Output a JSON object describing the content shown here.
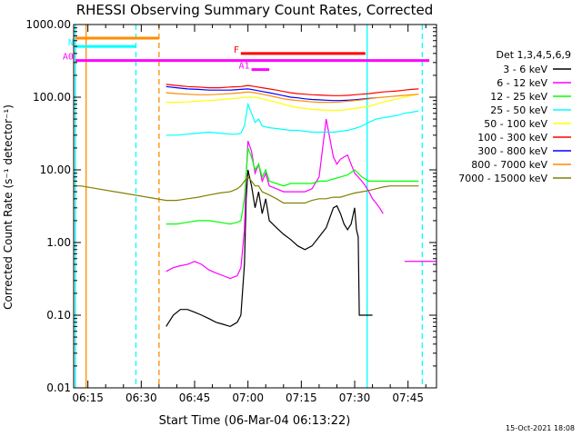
{
  "chart_data": {
    "type": "line",
    "title": "RHESSI Observing Summary Count Rates, Corrected",
    "xlabel": "Start Time (06-Mar-04 06:13:22)",
    "ylabel": "Corrected Count Rate (s⁻¹ detector⁻¹)",
    "x_unit": "minutes after 06:00 UT",
    "xlim": [
      11,
      113
    ],
    "ylim": [
      0.01,
      1000
    ],
    "y_scale": "log",
    "xticks": [
      {
        "x": 15,
        "label": "06:15"
      },
      {
        "x": 30,
        "label": "06:30"
      },
      {
        "x": 45,
        "label": "06:45"
      },
      {
        "x": 60,
        "label": "07:00"
      },
      {
        "x": 75,
        "label": "07:15"
      },
      {
        "x": 90,
        "label": "07:30"
      },
      {
        "x": 105,
        "label": "07:45"
      }
    ],
    "yticks": [
      {
        "y": 0.01,
        "label": "0.01"
      },
      {
        "y": 0.1,
        "label": "0.10"
      },
      {
        "y": 1,
        "label": "1.00"
      },
      {
        "y": 10,
        "label": "10.00"
      },
      {
        "y": 100,
        "label": "100.00"
      },
      {
        "y": 1000,
        "label": "1000.00"
      }
    ],
    "legend_title": "Det 1,3,4,5,6,9",
    "legend_placement": "right",
    "series": [
      {
        "name": "3 - 6 keV",
        "color": "#000000",
        "x": [
          37,
          39,
          41,
          43,
          45,
          47,
          49,
          51,
          53,
          55,
          57,
          58,
          59,
          59.5,
          60,
          61,
          62,
          63,
          64,
          65,
          66,
          68,
          70,
          72,
          74,
          76,
          78,
          80,
          82,
          84,
          85,
          86,
          87,
          88,
          89,
          90,
          90.5,
          91,
          91.3,
          95
        ],
        "y": [
          0.07,
          0.1,
          0.12,
          0.12,
          0.11,
          0.1,
          0.09,
          0.08,
          0.075,
          0.07,
          0.08,
          0.1,
          0.5,
          4,
          10,
          6,
          3,
          5,
          2.5,
          4,
          2,
          1.6,
          1.3,
          1.1,
          0.9,
          0.8,
          0.9,
          1.2,
          1.6,
          3,
          3.2,
          2.5,
          1.8,
          1.5,
          1.8,
          3,
          1.5,
          1.2,
          0.1,
          0.1
        ]
      },
      {
        "name": "6 - 12 keV",
        "color": "#ff00ff",
        "x": [
          37,
          39,
          41,
          43,
          45,
          47,
          49,
          51,
          53,
          55,
          57,
          58,
          59,
          59.5,
          60,
          61,
          62,
          63,
          64,
          65,
          66,
          68,
          70,
          72,
          74,
          76,
          78,
          80,
          82,
          84,
          85,
          86,
          87,
          88,
          89,
          90,
          91,
          92,
          93,
          94,
          95,
          96,
          97,
          98
        ],
        "y": [
          0.4,
          0.45,
          0.48,
          0.5,
          0.55,
          0.5,
          0.42,
          0.38,
          0.35,
          0.32,
          0.35,
          0.45,
          1.5,
          8,
          25,
          18,
          9,
          12,
          7,
          9,
          6,
          5.5,
          5,
          5,
          5,
          5,
          5.5,
          8,
          50,
          15,
          12,
          14,
          15,
          16,
          12,
          9,
          8,
          7,
          6,
          5,
          4,
          3.5,
          3,
          2.5
        ]
      },
      {
        "name": "12 - 25 keV",
        "color": "#00ff00",
        "x": [
          37,
          40,
          43,
          46,
          49,
          52,
          55,
          57,
          58,
          59,
          60,
          61,
          62,
          63,
          64,
          65,
          66,
          68,
          70,
          72,
          74,
          76,
          78,
          80,
          82,
          84,
          86,
          88,
          90,
          92,
          94,
          96,
          98,
          100,
          102,
          104,
          106,
          108
        ],
        "y": [
          1.8,
          1.8,
          1.9,
          2,
          2,
          1.9,
          1.8,
          1.9,
          2,
          4,
          20,
          15,
          10,
          12,
          8,
          10,
          7,
          6.5,
          6,
          6.5,
          6.5,
          6.5,
          6.5,
          7,
          7,
          7.5,
          8,
          8.5,
          10,
          8,
          7,
          7,
          7,
          7,
          7,
          7,
          7,
          7
        ]
      },
      {
        "name": "25 - 50 keV",
        "color": "#00ffff",
        "x": [
          37,
          40,
          43,
          46,
          49,
          52,
          55,
          57,
          58,
          59,
          60,
          61,
          62,
          63,
          64,
          66,
          68,
          70,
          72,
          74,
          76,
          78,
          80,
          82,
          84,
          86,
          88,
          90,
          92,
          94,
          96,
          98,
          100,
          102,
          104,
          106,
          108
        ],
        "y": [
          30,
          30,
          31,
          32,
          33,
          32,
          31,
          31,
          32,
          40,
          80,
          60,
          45,
          50,
          40,
          38,
          37,
          36,
          35,
          35,
          34,
          33,
          33,
          33,
          33,
          34,
          35,
          37,
          40,
          45,
          50,
          52,
          54,
          56,
          60,
          62,
          65
        ]
      },
      {
        "name": "50 - 100 keV",
        "color": "#ffff00",
        "x": [
          37,
          40,
          43,
          46,
          49,
          52,
          55,
          58,
          60,
          62,
          64,
          66,
          68,
          70,
          72,
          74,
          76,
          78,
          80,
          82,
          84,
          86,
          88,
          90,
          92,
          94,
          96,
          98,
          100,
          102,
          104,
          106,
          108
        ],
        "y": [
          85,
          85,
          86,
          88,
          90,
          92,
          95,
          98,
          100,
          100,
          95,
          90,
          85,
          80,
          75,
          72,
          70,
          68,
          67,
          66,
          66,
          66,
          68,
          70,
          72,
          75,
          80,
          85,
          90,
          95,
          100,
          105,
          110
        ]
      },
      {
        "name": "100 - 300 keV",
        "color": "#ff0000",
        "x": [
          37,
          40,
          43,
          46,
          49,
          52,
          55,
          58,
          60,
          62,
          64,
          66,
          68,
          70,
          72,
          74,
          76,
          78,
          80,
          82,
          84,
          86,
          88,
          90,
          92,
          94,
          96,
          98,
          100,
          102,
          104,
          106,
          108
        ],
        "y": [
          150,
          145,
          140,
          138,
          135,
          135,
          138,
          140,
          145,
          140,
          135,
          130,
          125,
          120,
          115,
          112,
          110,
          108,
          107,
          106,
          105,
          105,
          106,
          108,
          110,
          112,
          115,
          118,
          120,
          122,
          125,
          128,
          130
        ]
      },
      {
        "name": "300 - 800 keV",
        "color": "#0000ff",
        "x": [
          37,
          40,
          43,
          46,
          49,
          52,
          55,
          58,
          60,
          62,
          64,
          66,
          68,
          70,
          72,
          74,
          76,
          78,
          80,
          82,
          84,
          86,
          88,
          90,
          92,
          94,
          96
        ],
        "y": [
          140,
          135,
          130,
          128,
          125,
          125,
          125,
          128,
          130,
          125,
          120,
          115,
          110,
          105,
          100,
          98,
          95,
          93,
          92,
          91,
          90,
          90,
          91,
          92,
          94,
          96,
          98
        ]
      },
      {
        "name": "800 - 7000 keV",
        "color": "#ff8c00",
        "x": [
          37,
          40,
          43,
          46,
          49,
          52,
          55,
          58,
          60,
          62,
          64,
          66,
          68,
          70,
          72,
          74,
          76,
          78,
          80,
          82,
          84,
          86,
          88,
          90,
          92,
          94,
          96,
          98,
          100,
          102,
          104,
          106,
          108
        ],
        "y": [
          115,
          112,
          110,
          108,
          108,
          110,
          112,
          115,
          118,
          115,
          110,
          105,
          100,
          95,
          92,
          90,
          88,
          86,
          85,
          85,
          85,
          86,
          88,
          90,
          92,
          95,
          98,
          100,
          102,
          104,
          106,
          108,
          110
        ]
      },
      {
        "name": "7000 - 15000 keV",
        "color": "#808000",
        "x": [
          12,
          13,
          37,
          40,
          43,
          46,
          49,
          52,
          55,
          57,
          58,
          59,
          60,
          61,
          62,
          63,
          64,
          66,
          68,
          70,
          72,
          74,
          76,
          78,
          80,
          82,
          84,
          86,
          88,
          90,
          92,
          94,
          96,
          98,
          100,
          102,
          104,
          106,
          108
        ],
        "y": [
          6,
          6,
          3.8,
          3.8,
          4,
          4.2,
          4.5,
          4.8,
          5,
          5.5,
          6,
          7,
          8,
          7,
          6,
          6,
          5,
          4.5,
          4,
          3.5,
          3.5,
          3.5,
          3.5,
          3.8,
          4,
          4,
          4.2,
          4.2,
          4.5,
          4.8,
          5,
          5.2,
          5.5,
          5.8,
          6,
          6,
          6,
          6,
          6
        ]
      }
    ],
    "annotations": [
      {
        "label": "N",
        "color": "#00ffff",
        "x0": 11.5,
        "x1": 28.5,
        "y": 500
      },
      {
        "label": "",
        "color": "#ff8c00",
        "x0": 11.5,
        "x1": 35,
        "y": 650
      },
      {
        "label": "F",
        "color": "#ff0000",
        "x0": 58,
        "x1": 93,
        "y": 400
      },
      {
        "label": "A0",
        "color": "#ff00ff",
        "x0": 11.5,
        "x1": 111,
        "y": 320
      },
      {
        "label": "A1",
        "color": "#ff00ff",
        "x0": 61,
        "x1": 66,
        "y": 240
      },
      {
        "label": "",
        "color": "#ff00ff",
        "x0": 104,
        "x1": 113,
        "y": 0.55
      }
    ],
    "markers": [
      {
        "x": 11.5,
        "color": "#00ffff",
        "style": "solid"
      },
      {
        "x": 14.5,
        "color": "#ff8c00",
        "style": "solid"
      },
      {
        "x": 28.5,
        "color": "#00ffff",
        "style": "dashed"
      },
      {
        "x": 35,
        "color": "#ff8c00",
        "style": "dashed"
      },
      {
        "x": 93.5,
        "color": "#00ffff",
        "style": "solid"
      },
      {
        "x": 109,
        "color": "#00ffff",
        "style": "dashed"
      }
    ]
  },
  "footer": {
    "date": "15-Oct-2021 18:08"
  }
}
